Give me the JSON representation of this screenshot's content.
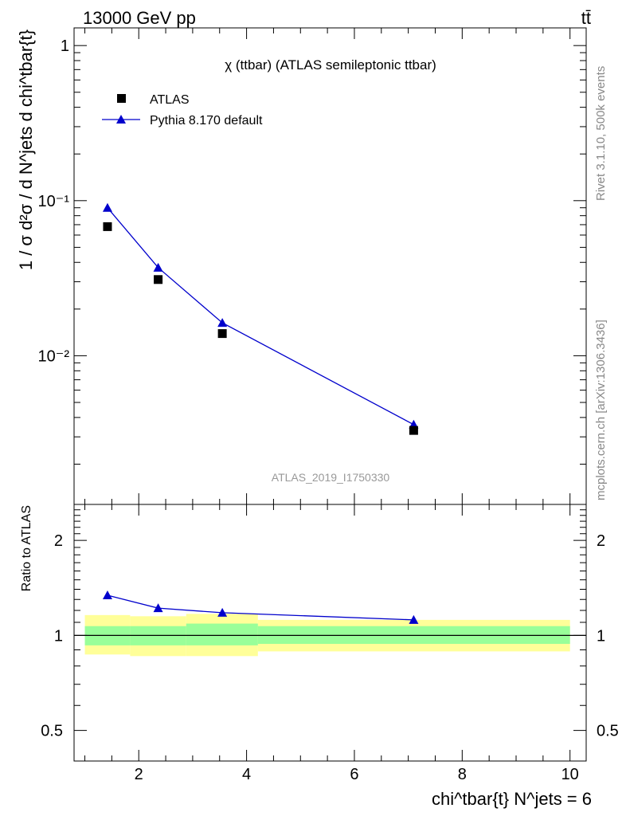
{
  "header": {
    "left": "13000 GeV pp",
    "right": "tt̄"
  },
  "side_labels": {
    "rivet": "Rivet 3.1.10,  500k events",
    "mcplots": "mcplots.cern.ch [arXiv:1306.3436]"
  },
  "chart_data": [
    {
      "type": "scatter",
      "panel": "main",
      "title": "χ (ttbar) (ATLAS semileptonic ttbar)",
      "watermark": "ATLAS_2019_I1750330",
      "ylabel": "1 / σ d²σ / d N^jets d chi^tbar{t}",
      "y_scale": "log",
      "xlim": [
        0.8,
        10.3
      ],
      "ylim": [
        0.0011,
        1.3
      ],
      "y_ticks": [
        {
          "value": 1,
          "label": "1"
        },
        {
          "value": 0.1,
          "label": "10⁻¹"
        },
        {
          "value": 0.01,
          "label": "10⁻²"
        }
      ],
      "legend_position": "top-left",
      "series": [
        {
          "name": "ATLAS",
          "style": "markers",
          "marker": "square",
          "color": "#000000",
          "x": [
            1.42,
            2.36,
            3.55,
            7.1
          ],
          "y": [
            0.068,
            0.031,
            0.0139,
            0.0033
          ],
          "x_bins": [
            [
              1.0,
              1.84
            ],
            [
              1.84,
              2.88
            ],
            [
              2.88,
              4.21
            ],
            [
              4.21,
              10.0
            ]
          ]
        },
        {
          "name": "Pythia 8.170 default",
          "style": "line+markers",
          "marker": "triangle",
          "color": "#0000cc",
          "x": [
            1.42,
            2.36,
            3.55,
            7.1
          ],
          "y": [
            0.09,
            0.037,
            0.0163,
            0.0036
          ]
        }
      ]
    },
    {
      "type": "line",
      "panel": "ratio",
      "ylabel": "Ratio to ATLAS",
      "xlabel": "chi^tbar{t} N^jets = 6",
      "y_scale": "log",
      "xlim": [
        0.8,
        10.3
      ],
      "ylim": [
        0.4,
        2.6
      ],
      "x_ticks": [
        2,
        4,
        6,
        8,
        10
      ],
      "y_ticks": [
        {
          "value": 0.5,
          "label": "0.5"
        },
        {
          "value": 1,
          "label": "1"
        },
        {
          "value": 2,
          "label": "2"
        }
      ],
      "bands": [
        {
          "x": [
            1.0,
            1.84
          ],
          "yellow": [
            0.87,
            1.16
          ],
          "green": [
            0.93,
            1.07
          ]
        },
        {
          "x": [
            1.84,
            2.88
          ],
          "yellow": [
            0.86,
            1.15
          ],
          "green": [
            0.93,
            1.07
          ]
        },
        {
          "x": [
            2.88,
            4.21
          ],
          "yellow": [
            0.86,
            1.17
          ],
          "green": [
            0.93,
            1.09
          ]
        },
        {
          "x": [
            4.21,
            10.0
          ],
          "yellow": [
            0.89,
            1.12
          ],
          "green": [
            0.94,
            1.07
          ]
        }
      ],
      "band_colors": {
        "yellow": "#ffff99",
        "green": "#99ff99"
      },
      "series": [
        {
          "name": "Pythia 8.170 default",
          "color": "#0000cc",
          "x": [
            1.42,
            2.36,
            3.55,
            7.1
          ],
          "y": [
            1.34,
            1.22,
            1.18,
            1.12
          ],
          "err": [
            0.01,
            0.015,
            0.025,
            0.025
          ]
        }
      ]
    }
  ]
}
